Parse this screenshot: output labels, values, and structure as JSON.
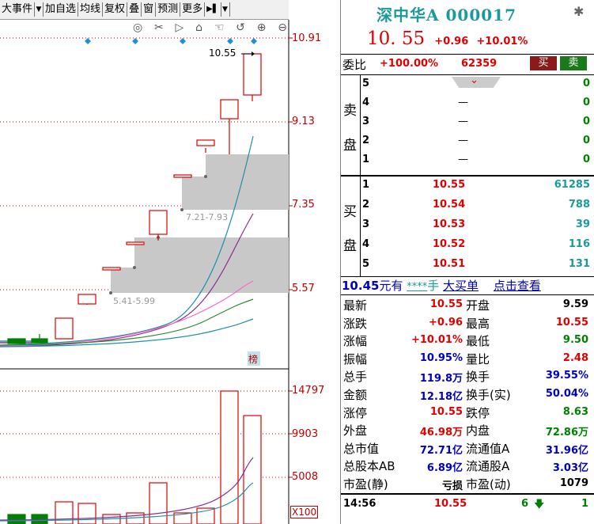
{
  "toolbar": {
    "items": [
      "大事件",
      "加自选",
      "均线",
      "复权",
      "叠",
      "窗",
      "预测",
      "更多"
    ],
    "dropdown_arrow": "▼",
    "pin_icon": "▶▌"
  },
  "chart_tools": [
    "eye-icon",
    "scissors-icon",
    "play-icon",
    "lock-icon",
    "hand-icon",
    "undo-icon",
    "zoom-in-icon",
    "zoom-out-icon"
  ],
  "price_axis": [
    "10.91",
    "9.13",
    "7.35",
    "5.57"
  ],
  "volume_axis": [
    "14797",
    "9903",
    "5008"
  ],
  "volume_unit": "X100",
  "annotations": {
    "high_label": "10.55",
    "gap1": "7.21-7.93",
    "gap2": "5.41-5.99",
    "rank_badge": "榜"
  },
  "stock": {
    "name": "深中华A",
    "code": "000017",
    "price": "10. 55",
    "change": "+0.96",
    "pct": "+10.01%"
  },
  "ratio": {
    "label": "委比",
    "value": "+100.00%",
    "diff": "62359",
    "buy_btn": "买",
    "sell_btn": "卖"
  },
  "sell_book": {
    "label": [
      "卖",
      "盘"
    ],
    "rows": [
      {
        "level": "5",
        "price": "",
        "vol": "0"
      },
      {
        "level": "4",
        "price": "—",
        "vol": "0"
      },
      {
        "level": "3",
        "price": "—",
        "vol": "0"
      },
      {
        "level": "2",
        "price": "—",
        "vol": "0"
      },
      {
        "level": "1",
        "price": "—",
        "vol": "0"
      }
    ]
  },
  "buy_book": {
    "label": [
      "买",
      "盘"
    ],
    "rows": [
      {
        "level": "1",
        "price": "10.55",
        "vol": "61285"
      },
      {
        "level": "2",
        "price": "10.54",
        "vol": "788"
      },
      {
        "level": "3",
        "price": "10.53",
        "vol": "39"
      },
      {
        "level": "4",
        "price": "10.52",
        "vol": "116"
      },
      {
        "level": "5",
        "price": "10.51",
        "vol": "131"
      }
    ]
  },
  "big_order": {
    "price": "10.45",
    "unit1": "元有",
    "stars": "****",
    "unit2": "手",
    "label": "大买单",
    "link": "点击查看"
  },
  "stats": [
    {
      "l1": "最新",
      "v1": "10.55",
      "c1": "red",
      "l2": "开盘",
      "v2": "9.59",
      "c2": "black"
    },
    {
      "l1": "涨跌",
      "v1": "+0.96",
      "c1": "red",
      "l2": "最高",
      "v2": "10.55",
      "c2": "red"
    },
    {
      "l1": "涨幅",
      "v1": "+10.01%",
      "c1": "red",
      "l2": "最低",
      "v2": "9.50",
      "c2": "green"
    },
    {
      "l1": "振幅",
      "v1": "10.95%",
      "c1": "blue",
      "l2": "量比",
      "v2": "2.48",
      "c2": "red"
    },
    {
      "l1": "总手",
      "v1": "119.8万",
      "c1": "blue",
      "l2": "换手",
      "v2": "39.55%",
      "c2": "blue"
    },
    {
      "l1": "金额",
      "v1": "12.18亿",
      "c1": "blue",
      "l2": "换手(实)",
      "v2": "50.04%",
      "c2": "blue"
    },
    {
      "l1": "涨停",
      "v1": "10.55",
      "c1": "red",
      "l2": "跌停",
      "v2": "8.63",
      "c2": "green"
    },
    {
      "l1": "外盘",
      "v1": "46.98万",
      "c1": "red",
      "l2": "内盘",
      "v2": "72.86万",
      "c2": "green"
    },
    {
      "l1": "总市值",
      "v1": "72.71亿",
      "c1": "blue",
      "l2": "流通值A",
      "v2": "31.96亿",
      "c2": "blue"
    },
    {
      "l1": "总股本AB",
      "v1": "6.89亿",
      "c1": "blue",
      "l2": "流通股A",
      "v2": "3.03亿",
      "c2": "blue"
    },
    {
      "l1": "市盈(静)",
      "v1": "亏损",
      "c1": "black",
      "l2": "市盈(动)",
      "v2": "1079",
      "c2": "black"
    }
  ],
  "ticks": [
    {
      "time": "14:56",
      "price": "10.55",
      "vol": "6",
      "dir": "down-arrow-icon",
      "n": "1"
    }
  ],
  "colors": {
    "up": "#e00000",
    "down": "#008000",
    "gap_fill": "#c8c8c8",
    "diamond": "#1e90d6",
    "ma_blue": "#1f8fa8",
    "ma_purple": "#8b2a8b",
    "ma_pink": "#ff66cc",
    "ma_green": "#2e8b2e"
  }
}
